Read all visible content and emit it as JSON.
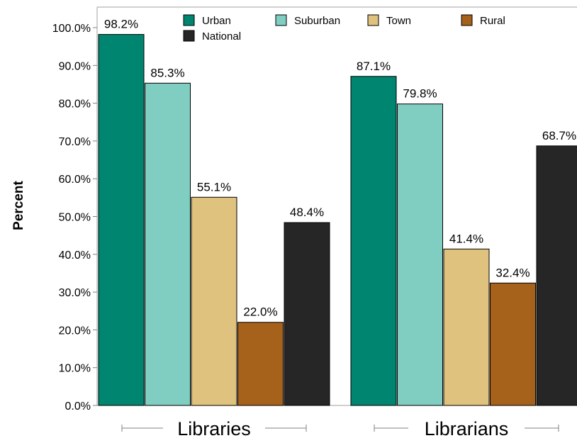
{
  "chart_data": {
    "type": "bar",
    "title": "",
    "xlabel": "",
    "ylabel": "Percent",
    "ylim": [
      0,
      100
    ],
    "yticks": [
      0,
      10,
      20,
      30,
      40,
      50,
      60,
      70,
      80,
      90,
      100
    ],
    "ytick_labels": [
      "0.0%",
      "10.0%",
      "20.0%",
      "30.0%",
      "40.0%",
      "50.0%",
      "60.0%",
      "70.0%",
      "80.0%",
      "90.0%",
      "100.0%"
    ],
    "categories": [
      "Libraries",
      "Librarians"
    ],
    "series": [
      {
        "name": "Urban",
        "color": "#008570",
        "values": [
          98.2,
          87.1
        ],
        "labels": [
          "98.2%",
          "87.1%"
        ]
      },
      {
        "name": "Suburban",
        "color": "#80cdc1",
        "values": [
          85.3,
          79.8
        ],
        "labels": [
          "85.3%",
          "79.8%"
        ]
      },
      {
        "name": "Town",
        "color": "#dfc27d",
        "values": [
          55.1,
          41.4
        ],
        "labels": [
          "55.1%",
          "41.4%"
        ]
      },
      {
        "name": "Rural",
        "color": "#a6611a",
        "values": [
          22.0,
          32.4
        ],
        "labels": [
          "22.0%",
          "32.4%"
        ]
      },
      {
        "name": "National",
        "color": "#262626",
        "values": [
          48.4,
          68.7
        ],
        "labels": [
          "48.4%",
          "68.7%"
        ]
      }
    ],
    "grid": false,
    "legend_position": "top"
  }
}
